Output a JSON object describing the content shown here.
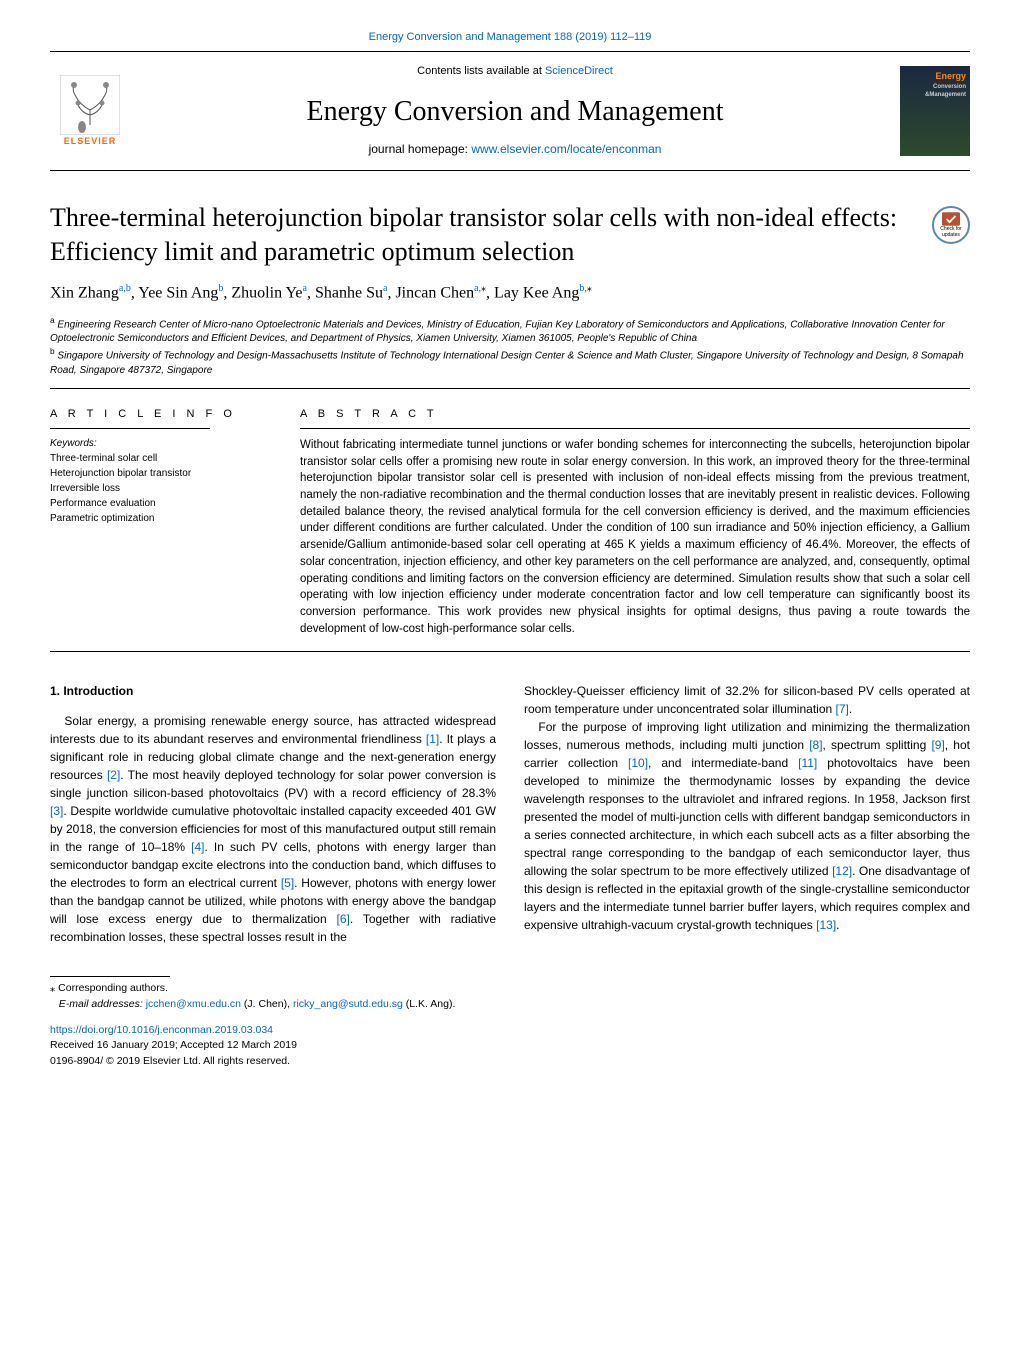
{
  "header": {
    "citation": "Energy Conversion and Management 188 (2019) 112–119",
    "contents_prefix": "Contents lists available at ",
    "contents_link": "ScienceDirect",
    "journal_name": "Energy Conversion and Management",
    "homepage_prefix": "journal homepage: ",
    "homepage_link": "www.elsevier.com/locate/enconman",
    "publisher_label": "ELSEVIER",
    "cover_label_1": "Energy",
    "cover_label_2": "Conversion",
    "cover_label_3": "&Management"
  },
  "check_badge": {
    "line1": "Check for",
    "line2": "updates"
  },
  "article": {
    "title": "Three-terminal heterojunction bipolar transistor solar cells with non-ideal effects: Efficiency limit and parametric optimum selection",
    "authors_html": "Xin Zhang<sup class='sup-link'>a,b</sup>, Yee Sin Ang<sup class='sup-link'>b</sup>, Zhuolin Ye<sup class='sup-link'>a</sup>, Shanhe Su<sup class='sup-link'>a</sup>, Jincan Chen<sup class='sup-link'>a,</sup><sup>⁎</sup>, Lay Kee Ang<sup class='sup-link'>b,</sup><sup>⁎</sup>",
    "affil_a": "Engineering Research Center of Micro-nano Optoelectronic Materials and Devices, Ministry of Education, Fujian Key Laboratory of Semiconductors and Applications, Collaborative Innovation Center for Optoelectronic Semiconductors and Efficient Devices, and Department of Physics, Xiamen University, Xiamen 361005, People's Republic of China",
    "affil_b": "Singapore University of Technology and Design-Massachusetts Institute of Technology International Design Center & Science and Math Cluster, Singapore University of Technology and Design, 8 Somapah Road, Singapore 487372, Singapore"
  },
  "info": {
    "section_label": "A R T I C L E  I N F O",
    "keywords_label": "Keywords:",
    "keywords": [
      "Three-terminal solar cell",
      "Heterojunction bipolar transistor",
      "Irreversible loss",
      "Performance evaluation",
      "Parametric optimization"
    ]
  },
  "abstract": {
    "section_label": "A B S T R A C T",
    "text": "Without fabricating intermediate tunnel junctions or wafer bonding schemes for interconnecting the subcells, heterojunction bipolar transistor solar cells offer a promising new route in solar energy conversion. In this work, an improved theory for the three-terminal heterojunction bipolar transistor solar cell is presented with inclusion of non-ideal effects missing from the previous treatment, namely the non-radiative recombination and the thermal conduction losses that are inevitably present in realistic devices. Following detailed balance theory, the revised analytical formula for the cell conversion efficiency is derived, and the maximum efficiencies under different conditions are further calculated. Under the condition of 100 sun irradiance and 50% injection efficiency, a Gallium arsenide/Gallium antimonide-based solar cell operating at 465 K yields a maximum efficiency of 46.4%. Moreover, the effects of solar concentration, injection efficiency, and other key parameters on the cell performance are analyzed, and, consequently, optimal operating conditions and limiting factors on the conversion efficiency are determined. Simulation results show that such a solar cell operating with low injection efficiency under moderate concentration factor and low cell temperature can significantly boost its conversion performance. This work provides new physical insights for optimal designs, thus paving a route towards the development of low-cost high-performance solar cells."
  },
  "body": {
    "section_heading": "1. Introduction",
    "col1_p1_parts": [
      "Solar energy, a promising renewable energy source, has attracted widespread interests due to its abundant reserves and environmental friendliness ",
      ". It plays a significant role in reducing global climate change and the next-generation energy resources ",
      ". The most heavily deployed technology for solar power conversion is single junction silicon-based photovoltaics (PV) with a record efficiency of 28.3% ",
      ". Despite worldwide cumulative photovoltaic installed capacity exceeded 401 GW by 2018, the conversion efficiencies for most of this manufactured output still remain in the range of 10–18% ",
      ". In such PV cells, photons with energy larger than semiconductor bandgap excite electrons into the conduction band, which diffuses to the electrodes to form an electrical current ",
      ". However, photons with energy lower than the bandgap cannot be utilized, while photons with energy above the bandgap will lose excess energy due to thermalization ",
      ". Together with radiative recombination losses, these spectral losses result in the"
    ],
    "col2_p1_parts": [
      "Shockley-Queisser efficiency limit of 32.2% for silicon-based PV cells operated at room temperature under unconcentrated solar illumination ",
      "."
    ],
    "col2_p2_parts": [
      "For the purpose of improving light utilization and minimizing the thermalization losses, numerous methods, including multi junction ",
      ", spectrum splitting ",
      ", hot carrier collection ",
      ", and intermediate-band ",
      " photovoltaics have been developed to minimize the thermodynamic losses by expanding the device wavelength responses to the ultraviolet and infrared regions. In 1958, Jackson first presented the model of multi-junction cells with different bandgap semiconductors in a series connected architecture, in which each subcell acts as a filter absorbing the spectral range corresponding to the bandgap of each semiconductor layer, thus allowing the solar spectrum to be more effectively utilized ",
      ". One disadvantage of this design is reflected in the epitaxial growth of the single-crystalline semiconductor layers and the intermediate tunnel barrier buffer layers, which requires complex and expensive ultrahigh-vacuum crystal-growth techniques ",
      "."
    ],
    "refs": {
      "r1": "[1]",
      "r2": "[2]",
      "r3": "[3]",
      "r4": "[4]",
      "r5": "[5]",
      "r6": "[6]",
      "r7": "[7]",
      "r8": "[8]",
      "r9": "[9]",
      "r10": "[10]",
      "r11": "[11]",
      "r12": "[12]",
      "r13": "[13]"
    }
  },
  "footer": {
    "corresponding": "⁎ Corresponding authors.",
    "email_label": "E-mail addresses: ",
    "email1": "jcchen@xmu.edu.cn",
    "email1_name": " (J. Chen), ",
    "email2": "ricky_ang@sutd.edu.sg",
    "email2_name": " (L.K. Ang).",
    "doi": "https://doi.org/10.1016/j.enconman.2019.03.034",
    "received": "Received 16 January 2019; Accepted 12 March 2019",
    "copyright": "0196-8904/ © 2019 Elsevier Ltd. All rights reserved."
  },
  "colors": {
    "link": "#0066cc",
    "elsevier_orange": "#ff6600",
    "badge_border": "#5b8aa8"
  }
}
